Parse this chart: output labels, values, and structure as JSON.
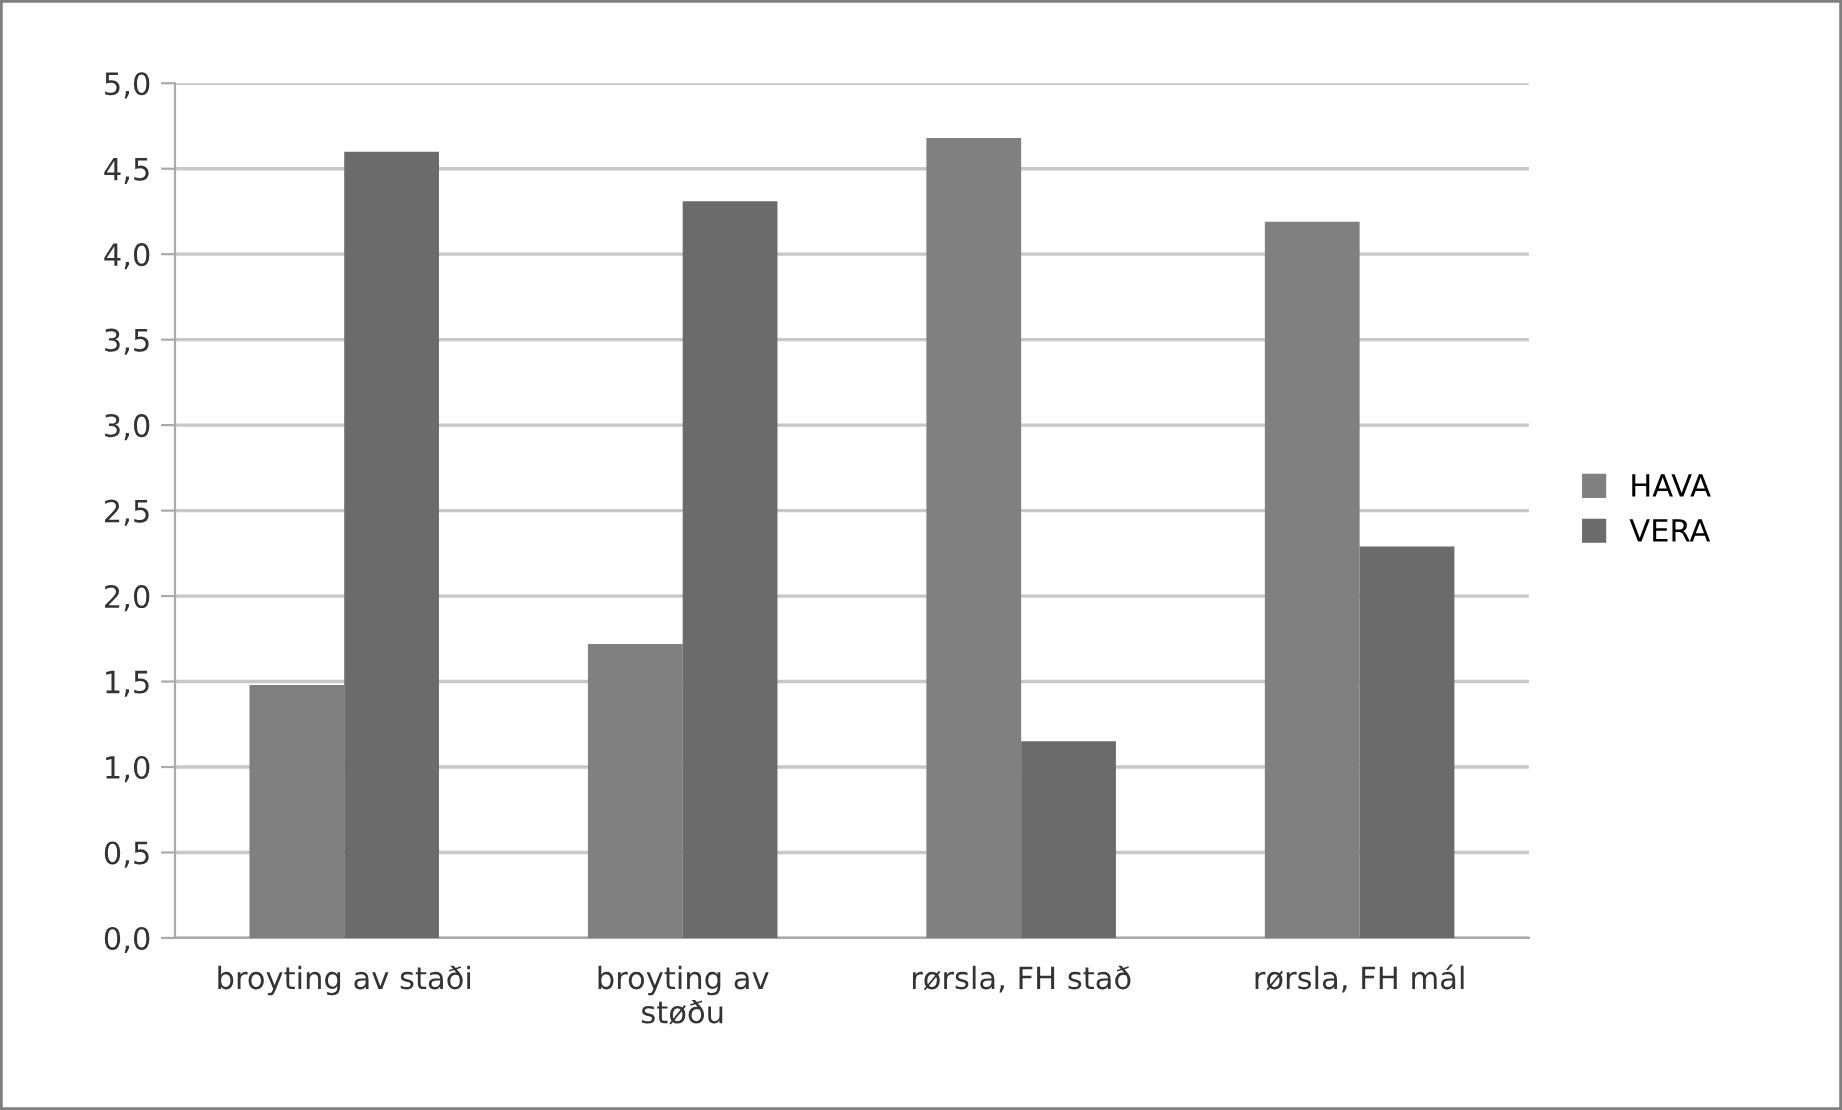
{
  "chart_data": {
    "type": "bar",
    "categories": [
      "broyting av staði",
      "broyting av\nstøðu",
      "rørsla, FH stað",
      "rørsla, FH mál"
    ],
    "series": [
      {
        "name": "HAVA",
        "color": "#808080",
        "values": [
          1.48,
          1.72,
          4.68,
          4.19
        ]
      },
      {
        "name": "VERA",
        "color": "#6b6b6b",
        "values": [
          4.6,
          4.31,
          1.15,
          2.29
        ]
      }
    ],
    "ylim": [
      0,
      5
    ],
    "yticks": [
      {
        "value": 0,
        "label": "0,0"
      },
      {
        "value": 0.5,
        "label": "0,5"
      },
      {
        "value": 1,
        "label": "1,0"
      },
      {
        "value": 1.5,
        "label": "1,5"
      },
      {
        "value": 2,
        "label": "2,0"
      },
      {
        "value": 2.5,
        "label": "2,5"
      },
      {
        "value": 3,
        "label": "3,0"
      },
      {
        "value": 3.5,
        "label": "3,5"
      },
      {
        "value": 4,
        "label": "4,0"
      },
      {
        "value": 4.5,
        "label": "4,5"
      },
      {
        "value": 5,
        "label": "5,0"
      }
    ],
    "grid": "y",
    "legend": "right"
  }
}
